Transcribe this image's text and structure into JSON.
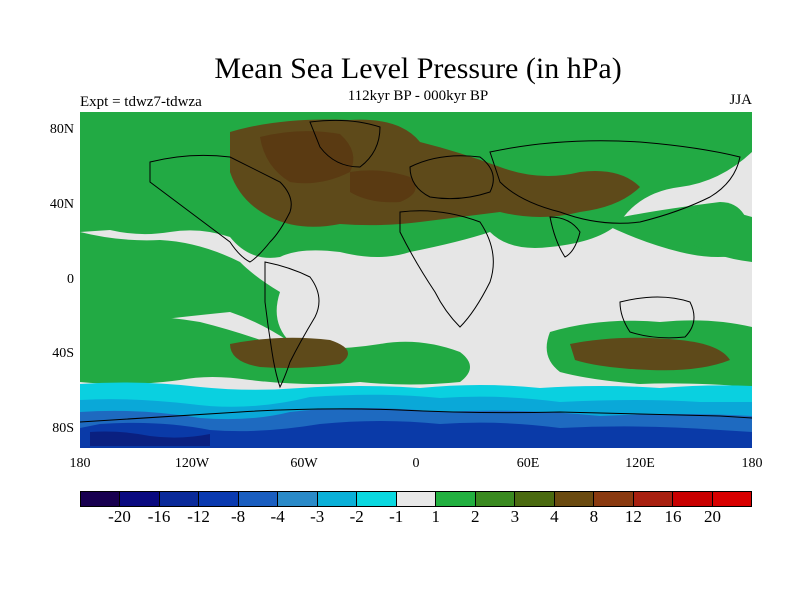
{
  "figure": {
    "title": "Mean Sea Level Pressure (in hPa)",
    "subtitle": "112kyr BP - 000kyr BP",
    "expt_label": "Expt = tdwz7-tdwza",
    "season": "JJA"
  },
  "map": {
    "projection": "cylindrical equidistant",
    "lon_range": [
      -180,
      180
    ],
    "lat_range": [
      -90,
      90
    ],
    "y_ticks": [
      "80N",
      "40N",
      "0",
      "40S",
      "80S"
    ],
    "x_ticks": [
      "180",
      "120W",
      "60W",
      "0",
      "60E",
      "120E",
      "180"
    ],
    "land_outline_color": "#000000",
    "field": "mean sea level pressure difference"
  },
  "colorbar": {
    "labels": [
      "-20",
      "-16",
      "-12",
      "-8",
      "-4",
      "-3",
      "-2",
      "-1",
      "1",
      "2",
      "3",
      "4",
      "8",
      "12",
      "16",
      "20"
    ],
    "colors": [
      "#180050",
      "#0a0a80",
      "#0a2a9a",
      "#0a3ab0",
      "#1a5ec0",
      "#2a8ac8",
      "#0ab0d8",
      "#0ad8e0",
      "#e8e8e8",
      "#22b040",
      "#3a8a20",
      "#4a6a10",
      "#6a4a10",
      "#8a3a10",
      "#a82010",
      "#c80000",
      "#d80000"
    ]
  }
}
